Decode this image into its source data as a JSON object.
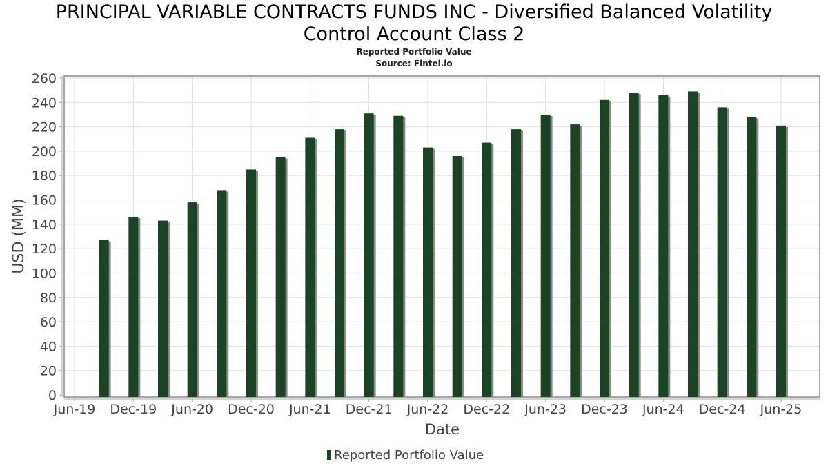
{
  "chart_data": {
    "type": "bar",
    "title": "PRINCIPAL VARIABLE CONTRACTS FUNDS INC - Diversified Balanced Volatility Control Account Class 2",
    "title_lines": [
      "PRINCIPAL VARIABLE CONTRACTS FUNDS INC - Diversified Balanced Volatility",
      "Control Account Class 2"
    ],
    "subtitle": "Reported Portfolio Value",
    "source": "Source: Fintel.io",
    "xlabel": "Date",
    "ylabel": "USD (MM)",
    "ylim": [
      0,
      260
    ],
    "yticks": [
      "0",
      "20",
      "40",
      "60",
      "80",
      "100",
      "120",
      "140",
      "160",
      "180",
      "200",
      "220",
      "240",
      "260"
    ],
    "xtick_labels": [
      "Jun-19",
      "Dec-19",
      "Jun-20",
      "Dec-20",
      "Jun-21",
      "Dec-21",
      "Jun-22",
      "Dec-22",
      "Jun-23",
      "Dec-23",
      "Jun-24",
      "Dec-24",
      "Jun-25"
    ],
    "grid": true,
    "legend": {
      "position": "bottom",
      "entries": [
        "Reported Portfolio Value"
      ]
    },
    "categories": [
      "Sep-19",
      "Dec-19",
      "Mar-20",
      "Jun-20",
      "Sep-20",
      "Dec-20",
      "Mar-21",
      "Jun-21",
      "Sep-21",
      "Dec-21",
      "Mar-22",
      "Jun-22",
      "Sep-22",
      "Dec-22",
      "Mar-23",
      "Jun-23",
      "Sep-23",
      "Dec-23",
      "Mar-24",
      "Jun-24",
      "Sep-24",
      "Dec-24",
      "Mar-25",
      "Jun-25"
    ],
    "series": [
      {
        "name": "Reported Portfolio Value",
        "color": "#1a4424",
        "shadow_color": "#8a8a8a",
        "values": [
          127,
          146,
          143,
          158,
          168,
          185,
          195,
          211,
          218,
          231,
          229,
          203,
          196,
          207,
          218,
          230,
          222,
          242,
          248,
          246,
          249,
          236,
          228,
          221
        ]
      }
    ]
  }
}
